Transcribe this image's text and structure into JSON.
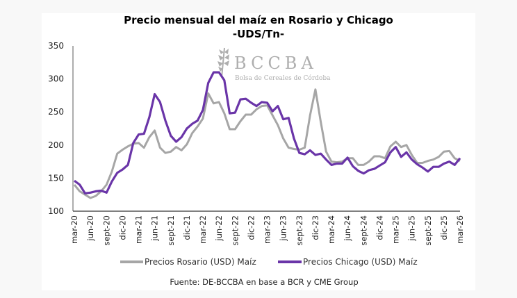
{
  "chart_data": {
    "type": "line",
    "title": "Precio mensual del maíz en Rosario y Chicago",
    "subtitle": "-UDS/Tn-",
    "xlabel": "",
    "ylabel": "",
    "ylim": [
      100,
      350
    ],
    "yticks": [
      100,
      150,
      200,
      250,
      300,
      350
    ],
    "grid": false,
    "legend_position": "bottom",
    "x_tick_labels": [
      "mar-20",
      "jun-20",
      "sept-20",
      "dic-20",
      "mar-21",
      "jun-21",
      "sept-21",
      "dic-21",
      "mar-22",
      "jun-22",
      "sept-22",
      "dic-22",
      "mar-23",
      "jun-23",
      "sept-23",
      "dic-23",
      "mar-24",
      "jun-24",
      "sept-24",
      "dic-24",
      "mar-25",
      "jun-25",
      "sept-25",
      "dic-25",
      "mar-26"
    ],
    "x_start": "mar-20",
    "x_end": "mar-26",
    "frequency": "monthly",
    "series": [
      {
        "name": "Precios Rosario (USD) Maíz",
        "color": "#a6a6a6",
        "values": [
          140,
          130,
          125,
          120,
          123,
          130,
          140,
          160,
          187,
          193,
          198,
          202,
          203,
          196,
          212,
          222,
          196,
          188,
          190,
          197,
          192,
          201,
          218,
          228,
          240,
          278,
          263,
          265,
          248,
          224,
          224,
          236,
          246,
          246,
          254,
          259,
          260,
          245,
          230,
          210,
          196,
          194,
          193,
          196,
          245,
          284,
          235,
          190,
          175,
          174,
          175,
          180,
          180,
          170,
          170,
          175,
          183,
          183,
          180,
          198,
          205,
          197,
          200,
          185,
          173,
          173,
          176,
          178,
          182,
          190,
          191,
          180,
          176
        ]
      },
      {
        "name": "Precios Chicago (USD) Maíz",
        "color": "#6a35a8",
        "values": [
          146,
          140,
          127,
          128,
          130,
          131,
          128,
          145,
          158,
          163,
          170,
          203,
          216,
          217,
          242,
          277,
          265,
          237,
          214,
          205,
          212,
          225,
          232,
          237,
          253,
          294,
          310,
          310,
          298,
          248,
          249,
          269,
          270,
          264,
          259,
          265,
          264,
          251,
          259,
          239,
          241,
          210,
          188,
          186,
          192,
          185,
          187,
          178,
          170,
          172,
          172,
          181,
          168,
          161,
          157,
          162,
          164,
          169,
          174,
          189,
          197,
          182,
          189,
          178,
          171,
          166,
          160,
          167,
          167,
          172,
          175,
          170,
          180
        ]
      }
    ],
    "annotations": [
      "BCCBA",
      "Bolsa de Cereales de Córdoba"
    ]
  },
  "title": "Precio mensual del maíz en Rosario y Chicago",
  "subtitle": "-UDS/Tn-",
  "watermark": {
    "brand": "BCCBA",
    "subtitle": "Bolsa de Cereales de Córdoba"
  },
  "legend": [
    {
      "label": "Precios Rosario (USD) Maíz",
      "color": "#a6a6a6"
    },
    {
      "label": "Precios Chicago (USD) Maíz",
      "color": "#6a35a8"
    }
  ],
  "source": "Fuente: DE-BCCBA en base a BCR y CME Group"
}
